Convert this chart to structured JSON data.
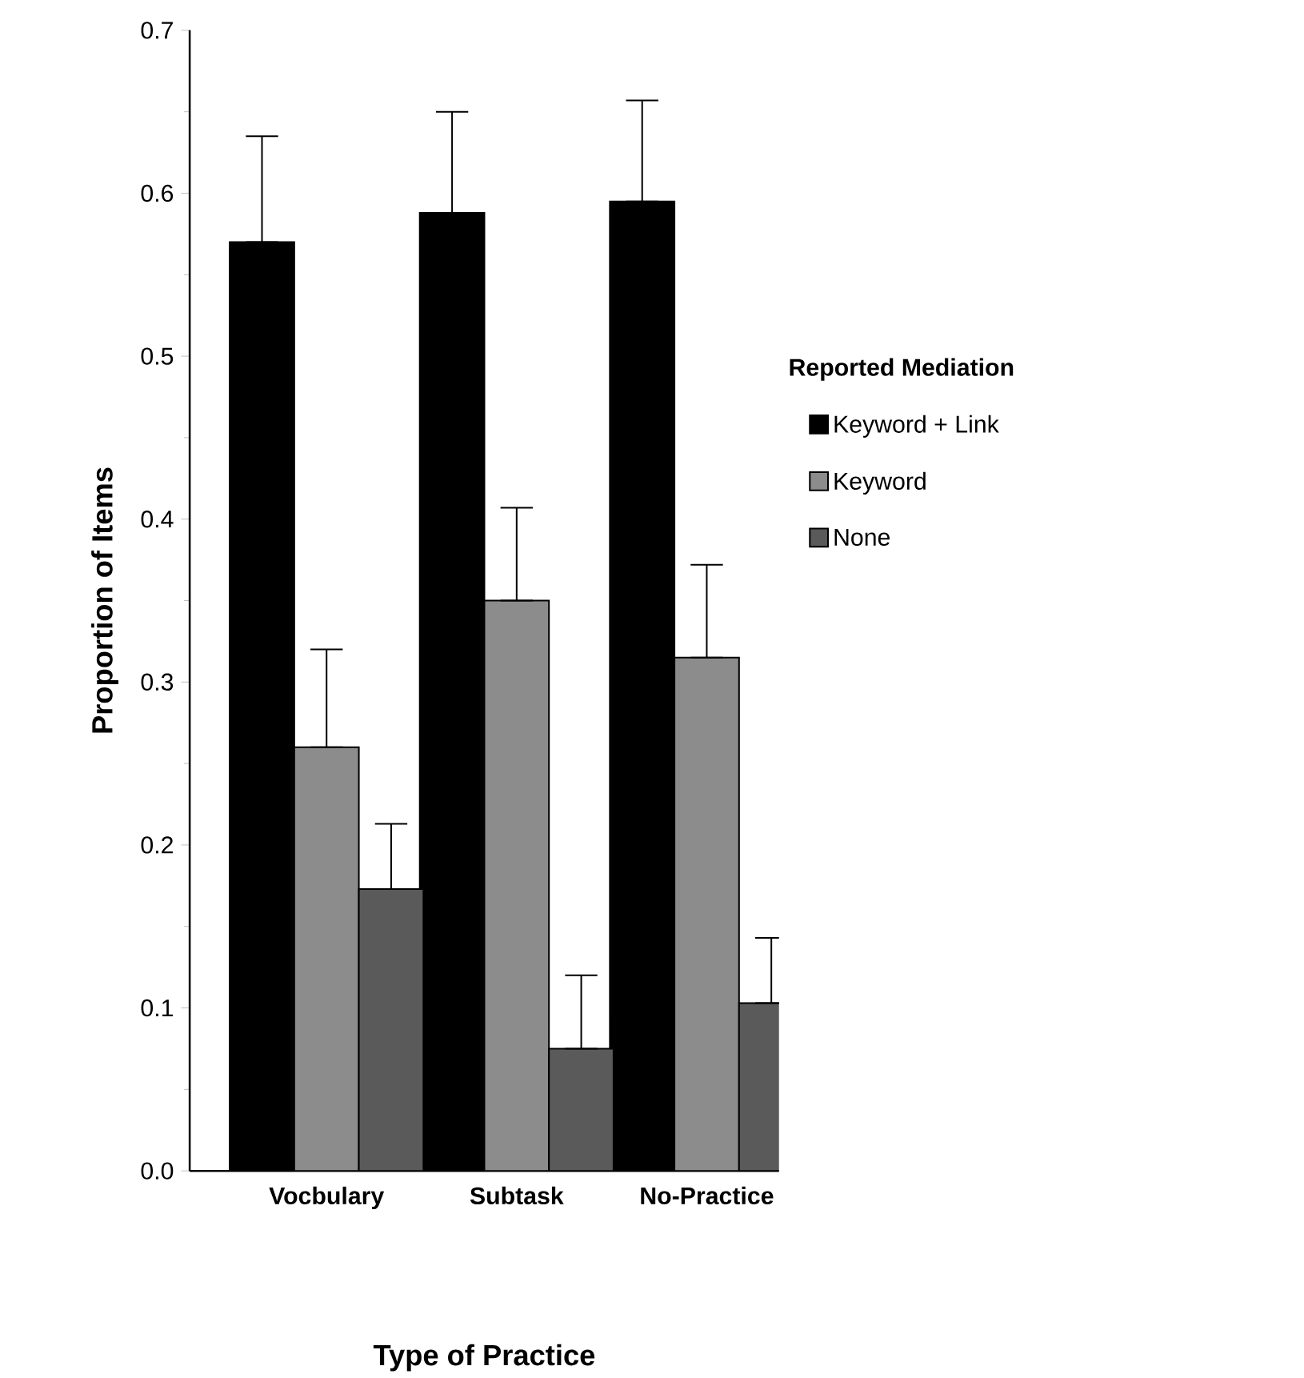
{
  "chart_data": {
    "type": "bar",
    "xlabel": "Type of Practice",
    "ylabel": "Proportion of Items",
    "legend_title": "Reported Mediation",
    "categories": [
      "Vocbulary",
      "Subtask",
      "No-Practice"
    ],
    "series": [
      {
        "name": "Keyword + Link",
        "color": "#000000",
        "values": [
          0.57,
          0.588,
          0.595
        ],
        "errors": [
          [
            0.57,
            0.635
          ],
          [
            0.588,
            0.65
          ],
          [
            0.595,
            0.657
          ]
        ]
      },
      {
        "name": "Keyword",
        "color": "#8c8c8c",
        "values": [
          0.26,
          0.35,
          0.315
        ],
        "errors": [
          [
            0.26,
            0.32
          ],
          [
            0.35,
            0.407
          ],
          [
            0.315,
            0.372
          ]
        ]
      },
      {
        "name": "None",
        "color": "#5a5a5a",
        "values": [
          0.173,
          0.075,
          0.103
        ],
        "errors": [
          [
            0.173,
            0.213
          ],
          [
            0.075,
            0.12
          ],
          [
            0.103,
            0.143
          ]
        ]
      }
    ],
    "ylim": [
      0,
      0.7
    ],
    "yticks": [
      {
        "value": 0,
        "label": "0.0"
      },
      0.1,
      0.2,
      0.3,
      0.4,
      0.5,
      0.6,
      0.7
    ],
    "legend": "right"
  }
}
